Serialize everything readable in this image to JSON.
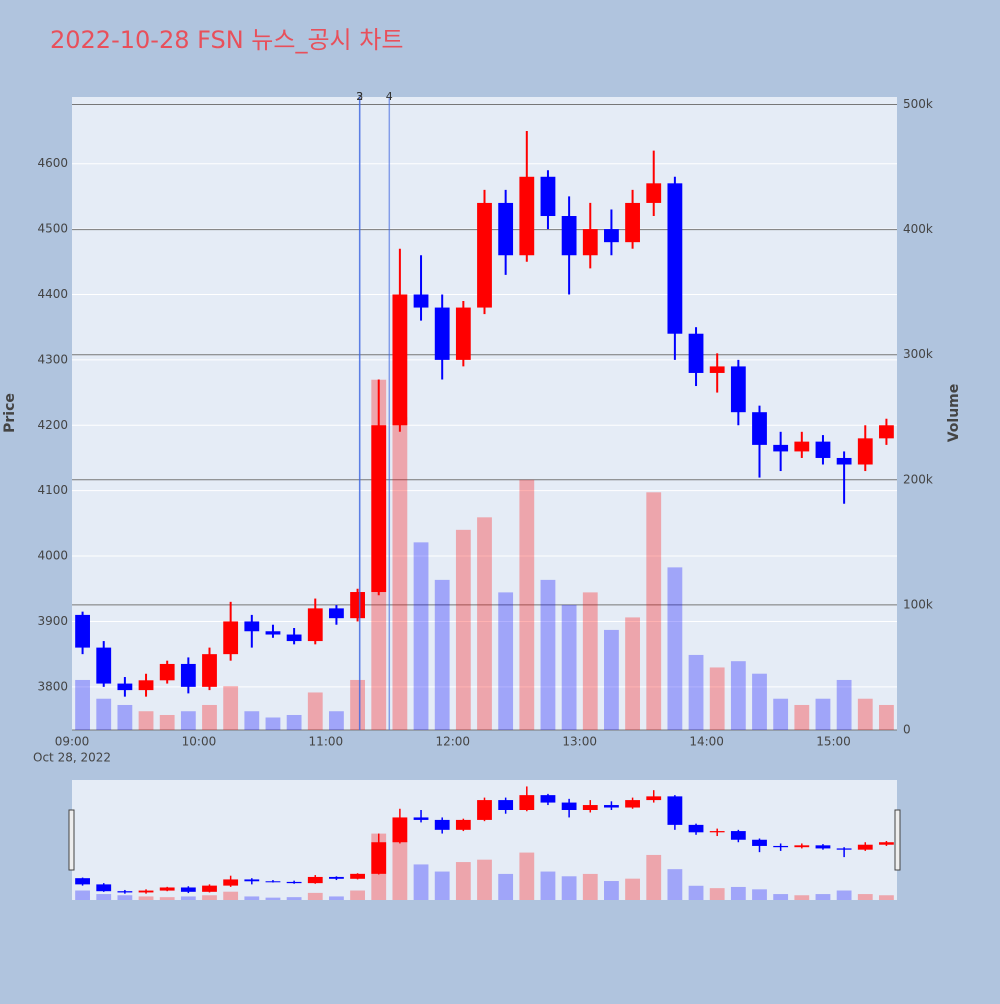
{
  "chart_data": {
    "type": "candlestick",
    "title": "2022-10-28 FSN 뉴스_공시 차트",
    "y_label": "Price",
    "y2_label": "Volume",
    "x_date_label": "Oct 28, 2022",
    "increasing_color": "#ff0000",
    "decreasing_color": "#0000ff",
    "x": [
      "09:00",
      "09:10",
      "09:20",
      "09:30",
      "09:40",
      "09:50",
      "10:00",
      "10:10",
      "10:20",
      "10:30",
      "10:40",
      "10:50",
      "11:00",
      "11:10",
      "11:20",
      "11:30",
      "11:40",
      "11:50",
      "12:00",
      "12:10",
      "12:20",
      "12:30",
      "12:40",
      "12:50",
      "13:00",
      "13:10",
      "13:20",
      "13:30",
      "13:40",
      "13:50",
      "14:00",
      "14:10",
      "14:20",
      "14:30",
      "14:40",
      "14:50",
      "15:00",
      "15:10",
      "15:20"
    ],
    "open": [
      3910,
      3860,
      3805,
      3795,
      3810,
      3835,
      3800,
      3850,
      3900,
      3885,
      3880,
      3870,
      3920,
      3905,
      3945,
      4200,
      4400,
      4380,
      4300,
      4380,
      4540,
      4460,
      4580,
      4520,
      4460,
      4500,
      4480,
      4540,
      4570,
      4340,
      4280,
      4290,
      4220,
      4170,
      4160,
      4175,
      4150,
      4140,
      4180
    ],
    "high": [
      3915,
      3870,
      3815,
      3820,
      3840,
      3845,
      3860,
      3930,
      3910,
      3895,
      3890,
      3935,
      3925,
      3950,
      4270,
      4470,
      4460,
      4400,
      4390,
      4560,
      4560,
      4650,
      4590,
      4550,
      4540,
      4530,
      4560,
      4620,
      4580,
      4350,
      4310,
      4300,
      4230,
      4190,
      4190,
      4185,
      4160,
      4200,
      4210
    ],
    "low": [
      3850,
      3800,
      3785,
      3785,
      3805,
      3790,
      3795,
      3840,
      3860,
      3875,
      3865,
      3865,
      3895,
      3900,
      3940,
      4190,
      4360,
      4270,
      4290,
      4370,
      4430,
      4450,
      4500,
      4400,
      4440,
      4460,
      4470,
      4520,
      4300,
      4260,
      4250,
      4200,
      4120,
      4130,
      4150,
      4140,
      4080,
      4130,
      4170
    ],
    "close": [
      3860,
      3805,
      3795,
      3810,
      3835,
      3800,
      3850,
      3900,
      3885,
      3880,
      3870,
      3920,
      3905,
      3945,
      4200,
      4400,
      4380,
      4300,
      4380,
      4540,
      4460,
      4580,
      4520,
      4460,
      4500,
      4480,
      4540,
      4570,
      4340,
      4280,
      4290,
      4220,
      4170,
      4160,
      4175,
      4150,
      4140,
      4180,
      4200
    ],
    "volume": [
      40000,
      25000,
      20000,
      15000,
      12000,
      15000,
      20000,
      35000,
      15000,
      10000,
      12000,
      30000,
      15000,
      40000,
      280000,
      250000,
      150000,
      120000,
      160000,
      170000,
      110000,
      200000,
      120000,
      100000,
      110000,
      80000,
      90000,
      190000,
      130000,
      60000,
      50000,
      55000,
      45000,
      25000,
      20000,
      25000,
      40000,
      25000,
      20000
    ],
    "annotations": [
      {
        "x": "11:16",
        "label": "2"
      },
      {
        "x": "11:16",
        "label": "3"
      },
      {
        "x": "11:30",
        "label": "4"
      }
    ],
    "xlim": [
      "09:00",
      "15:30"
    ],
    "xticks": [
      "09:00",
      "10:00",
      "11:00",
      "12:00",
      "13:00",
      "14:00",
      "15:00"
    ],
    "ylim": [
      3734,
      4702
    ],
    "yticks": [
      3800,
      3900,
      4000,
      4100,
      4200,
      4300,
      4400,
      4500,
      4600
    ],
    "y2lim": [
      0,
      506000
    ],
    "y2ticks": [
      0,
      {
        "value": 100000,
        "label": "100k"
      },
      {
        "value": 200000,
        "label": "200k"
      },
      {
        "value": 300000,
        "label": "300k"
      },
      {
        "value": 400000,
        "label": "400k"
      },
      {
        "value": 500000,
        "label": "500k"
      }
    ]
  }
}
